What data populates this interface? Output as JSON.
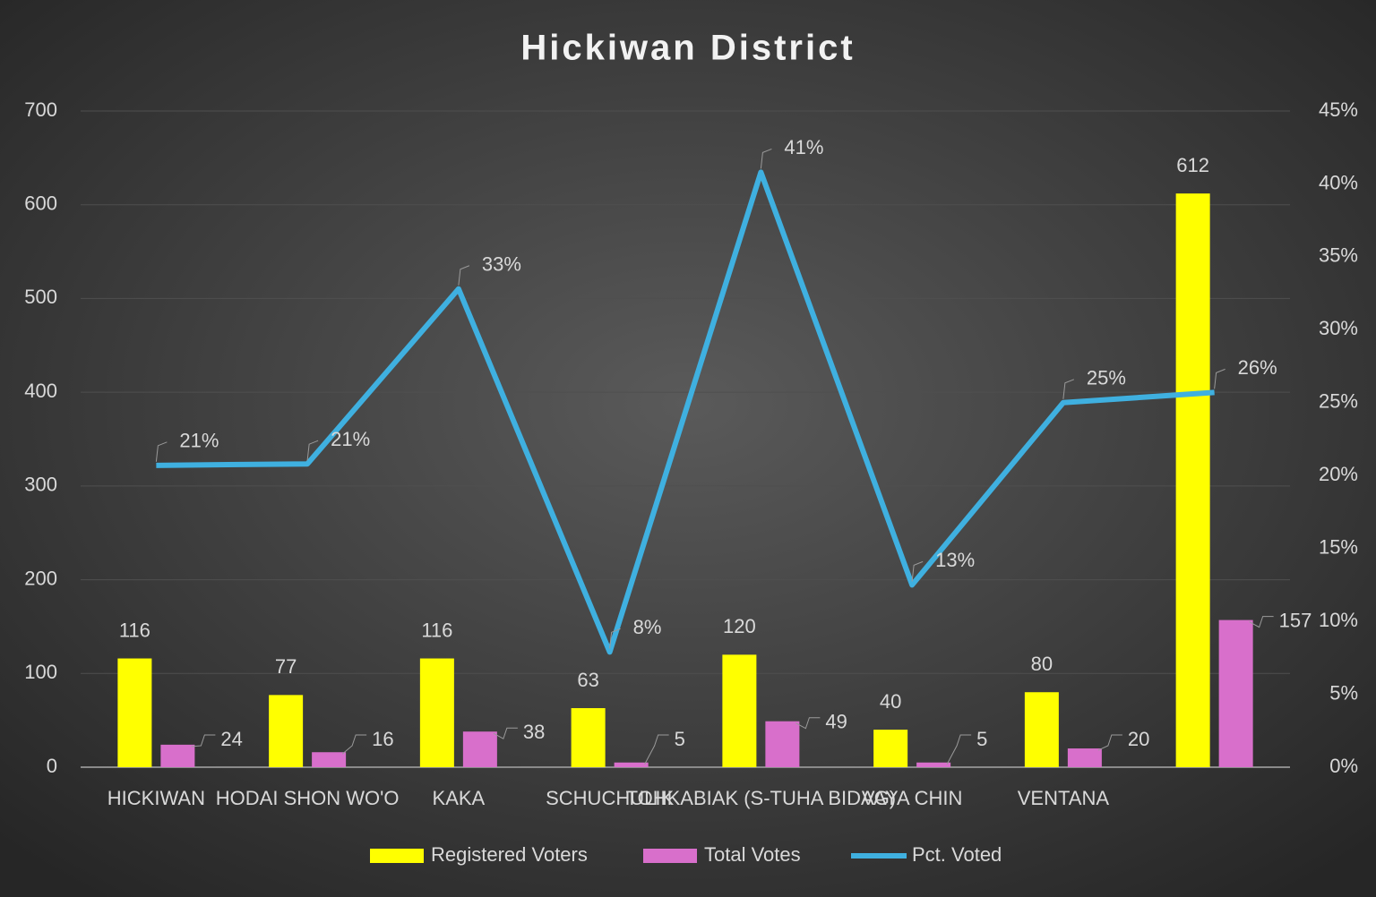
{
  "chart_data": {
    "type": "bar_line",
    "title": "Hickiwan District",
    "categories": [
      "HICKIWAN",
      "HODAI SHON WO'O",
      "KAKA",
      "SCHUCHULIK",
      "TOHKABIAK (S-TUHA BIDAG)",
      "VAYA CHIN",
      "VENTANA",
      null
    ],
    "series": [
      {
        "name": "Registered Voters",
        "type": "bar",
        "color": "#ffff00",
        "values": [
          116,
          77,
          116,
          63,
          120,
          40,
          80,
          612
        ]
      },
      {
        "name": "Total Votes",
        "type": "bar",
        "color": "#d86fcb",
        "values": [
          24,
          16,
          38,
          5,
          49,
          5,
          20,
          157
        ]
      },
      {
        "name": "Pct. Voted",
        "type": "line",
        "axis": "y2",
        "color": "#3fb0e0",
        "values": [
          20.7,
          20.8,
          32.8,
          7.9,
          40.8,
          12.5,
          25,
          25.7
        ],
        "value_labels": [
          "21%",
          "21%",
          "33%",
          "8%",
          "41%",
          "13%",
          "25%",
          "26%"
        ]
      }
    ],
    "ylim": [
      0,
      700
    ],
    "yticks": [
      0,
      100,
      200,
      300,
      400,
      500,
      600,
      700
    ],
    "y2lim": [
      0,
      45
    ],
    "y2ticks": [
      {
        "value": 0,
        "label": "0%"
      },
      {
        "value": 5,
        "label": "5%"
      },
      {
        "value": 10,
        "label": "10%"
      },
      {
        "value": 15,
        "label": "15%"
      },
      {
        "value": 20,
        "label": "20%"
      },
      {
        "value": 25,
        "label": "25%"
      },
      {
        "value": 30,
        "label": "30%"
      },
      {
        "value": 35,
        "label": "35%"
      },
      {
        "value": 40,
        "label": "40%"
      },
      {
        "value": 45,
        "label": "45%"
      }
    ],
    "grid": true,
    "legend": "bottom"
  }
}
